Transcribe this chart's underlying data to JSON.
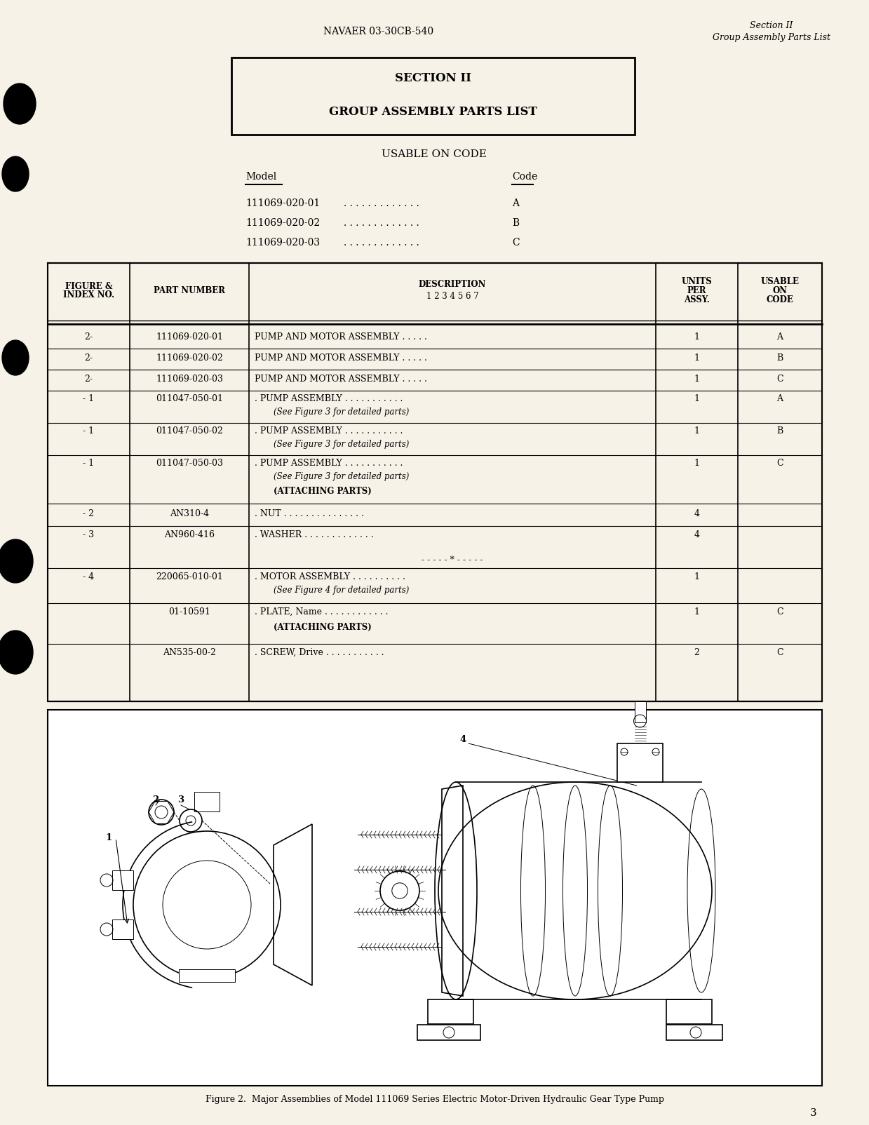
{
  "bg_color": "#f7f2e8",
  "header_left": "NAVAER 03-30CB-540",
  "header_right_line1": "Section II",
  "header_right_line2": "Group Assembly Parts List",
  "section_box_title1": "SECTION II",
  "section_box_title2": "GROUP ASSEMBLY PARTS LIST",
  "usable_on_code_title": "USABLE ON CODE",
  "model_label": "Model",
  "code_label": "Code",
  "models": [
    {
      "model": "111069-020-01",
      "code": "A"
    },
    {
      "model": "111069-020-02",
      "code": "B"
    },
    {
      "model": "111069-020-03",
      "code": "C"
    }
  ],
  "table_rows": [
    {
      "fig": "2-",
      "part": "111069-020-01",
      "desc": "PUMP AND MOTOR ASSEMBLY . . . . .",
      "units": "1",
      "code": "A",
      "sub": "",
      "attaching": ""
    },
    {
      "fig": "2-",
      "part": "111069-020-02",
      "desc": "PUMP AND MOTOR ASSEMBLY . . . . .",
      "units": "1",
      "code": "B",
      "sub": "",
      "attaching": ""
    },
    {
      "fig": "2-",
      "part": "111069-020-03",
      "desc": "PUMP AND MOTOR ASSEMBLY . . . . .",
      "units": "1",
      "code": "C",
      "sub": "",
      "attaching": ""
    },
    {
      "fig": "- 1",
      "part": "011047-050-01",
      "desc": ". PUMP ASSEMBLY . . . . . . . . . . .",
      "units": "1",
      "code": "A",
      "sub": "(See Figure 3 for detailed parts)",
      "attaching": ""
    },
    {
      "fig": "- 1",
      "part": "011047-050-02",
      "desc": ". PUMP ASSEMBLY . . . . . . . . . . .",
      "units": "1",
      "code": "B",
      "sub": "(See Figure 3 for detailed parts)",
      "attaching": ""
    },
    {
      "fig": "- 1",
      "part": "011047-050-03",
      "desc": ". PUMP ASSEMBLY . . . . . . . . . . .",
      "units": "1",
      "code": "C",
      "sub": "(See Figure 3 for detailed parts)",
      "attaching": "(ATTACHING PARTS)"
    },
    {
      "fig": "- 2",
      "part": "AN310-4",
      "desc": ". NUT . . . . . . . . . . . . . . .",
      "units": "4",
      "code": "",
      "sub": "",
      "attaching": ""
    },
    {
      "fig": "- 3",
      "part": "AN960-416",
      "desc": ". WASHER . . . . . . . . . . . . .",
      "units": "4",
      "code": "",
      "sub": "",
      "attaching": "",
      "divider": true
    },
    {
      "fig": "- 4",
      "part": "220065-010-01",
      "desc": ". MOTOR ASSEMBLY . . . . . . . . . .",
      "units": "1",
      "code": "",
      "sub": "(See Figure 4 for detailed parts)",
      "attaching": ""
    },
    {
      "fig": "",
      "part": "01-10591",
      "desc": ". PLATE, Name . . . . . . . . . . . .",
      "units": "1",
      "code": "C",
      "sub": "",
      "attaching": "(ATTACHING PARTS)"
    },
    {
      "fig": "",
      "part": "AN535-00-2",
      "desc": ". SCREW, Drive . . . . . . . . . . .",
      "units": "2",
      "code": "C",
      "sub": "",
      "attaching": ""
    }
  ],
  "figure_caption": "Figure 2.  Major Assemblies of Model 111069 Series Electric Motor-Driven Hydraulic Gear Type Pump",
  "page_number": "3"
}
